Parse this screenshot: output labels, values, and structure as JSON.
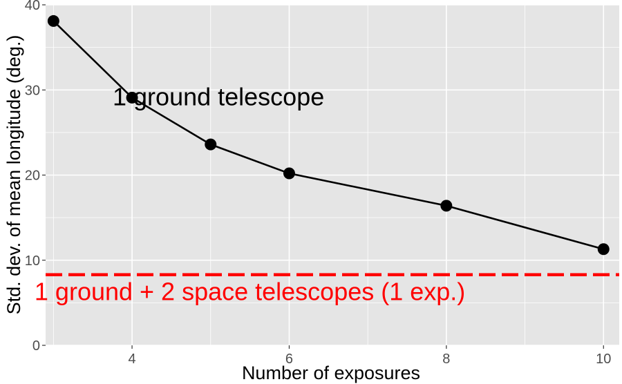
{
  "chart_data": {
    "type": "line",
    "xlabel": "Number of exposures",
    "ylabel": "Std. dev. of mean longitude (deg.)",
    "xlim": [
      2.9,
      10.2
    ],
    "ylim": [
      0,
      40
    ],
    "x_ticks": [
      4,
      6,
      8,
      10
    ],
    "y_ticks": [
      0,
      10,
      20,
      30,
      40
    ],
    "grid": true,
    "series": [
      {
        "x": [
          3,
          4,
          5,
          6,
          8,
          10
        ],
        "y": [
          38.1,
          29.1,
          23.6,
          20.2,
          16.4,
          11.3
        ],
        "color": "#000000"
      }
    ],
    "reference_line": {
      "y": 8.3,
      "style": "dashed",
      "color": "#ff0000"
    },
    "annotations": [
      {
        "text": "1 ground telescope",
        "x": 5.1,
        "y": 28.2,
        "color": "#000000"
      },
      {
        "text": "1 ground + 2 space telescopes (1 exp.)",
        "x": 5.5,
        "y": 5.3,
        "color": "#ff0000"
      }
    ],
    "panel_background": "#e5e5e5",
    "grid_color": "#ffffff"
  }
}
